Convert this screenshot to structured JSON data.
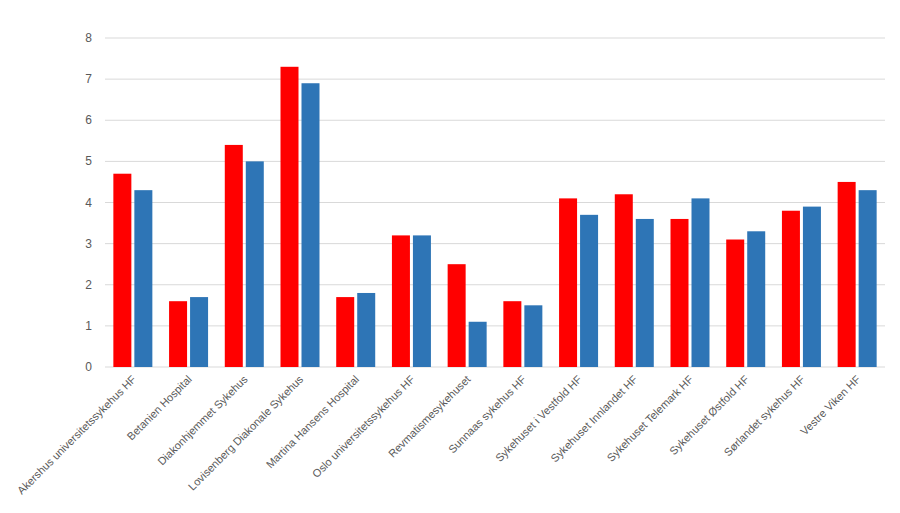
{
  "chart_data": {
    "type": "bar",
    "categories": [
      "Akershus universitetssykehus HF",
      "Betanien Hospital",
      "Diakonhjemmet Sykehus",
      "Lovisenberg Diakonale Sykehus",
      "Martina Hansens Hospital",
      "Oslo universitetssykehus HF",
      "Revmatismesykehuset",
      "Sunnaas sykehus HF",
      "Sykehuset i Vestfold HF",
      "Sykehuset Innlandet HF",
      "Sykehuset Telemark HF",
      "Sykehuset Østfold HF",
      "Sørlandet sykehus HF",
      "Vestre Viken HF"
    ],
    "series": [
      {
        "color": "#ff0000",
        "values": [
          4.7,
          1.6,
          5.4,
          7.3,
          1.7,
          3.2,
          2.5,
          1.6,
          4.1,
          4.2,
          3.6,
          3.1,
          3.8,
          4.5
        ]
      },
      {
        "color": "#2e75b6",
        "values": [
          4.3,
          1.7,
          5.0,
          6.9,
          1.8,
          3.2,
          1.1,
          1.5,
          3.7,
          3.6,
          4.1,
          3.3,
          3.9,
          4.3
        ]
      }
    ],
    "ylim": [
      0,
      8
    ],
    "yticks": [
      0,
      1,
      2,
      3,
      4,
      5,
      6,
      7,
      8
    ],
    "grid": true
  }
}
